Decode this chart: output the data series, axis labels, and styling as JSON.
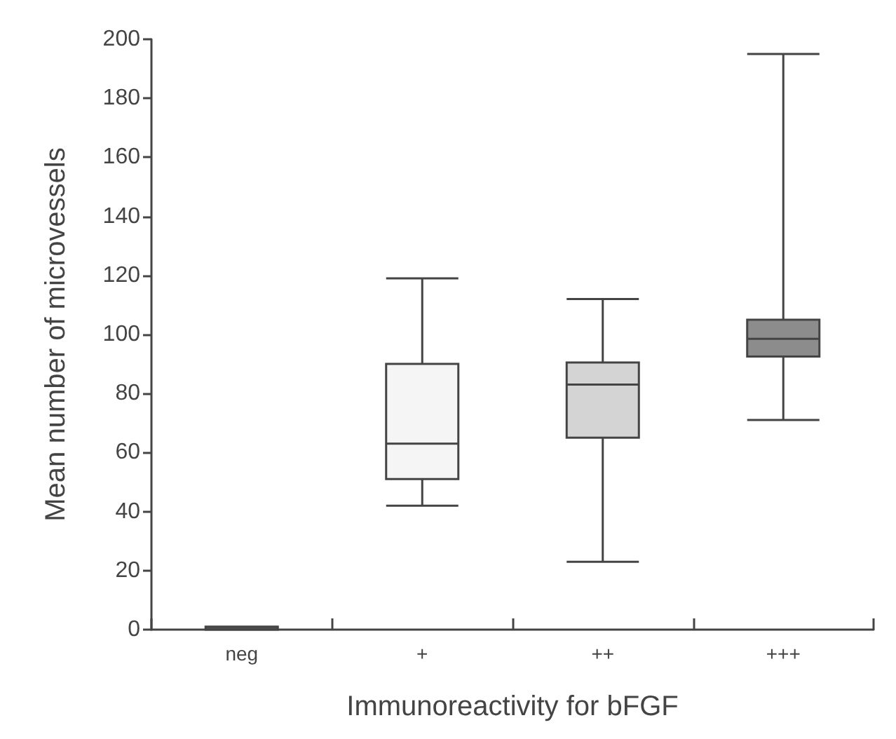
{
  "chart_data": {
    "type": "box",
    "xlabel": "Immunoreactivity for bFGF",
    "ylabel": "Mean number of microvessels",
    "categories": [
      "neg",
      "+",
      "++",
      "+++"
    ],
    "boxes": [
      {
        "low": 0,
        "q1": 0,
        "median": 0,
        "q3": 1,
        "high": 1
      },
      {
        "low": 42,
        "q1": 51,
        "median": 63,
        "q3": 90,
        "high": 119
      },
      {
        "low": 23,
        "q1": 65,
        "median": 83,
        "q3": 90.5,
        "high": 112
      },
      {
        "low": 71,
        "q1": 92.5,
        "median": 98.5,
        "q3": 105,
        "high": 195
      }
    ],
    "colors": [
      "#555555",
      "#f5f5f5",
      "#d4d4d4",
      "#8c8c8c"
    ],
    "ylim": [
      0,
      200
    ],
    "yticks": [
      0,
      20,
      40,
      60,
      80,
      100,
      120,
      140,
      160,
      180,
      200
    ]
  }
}
